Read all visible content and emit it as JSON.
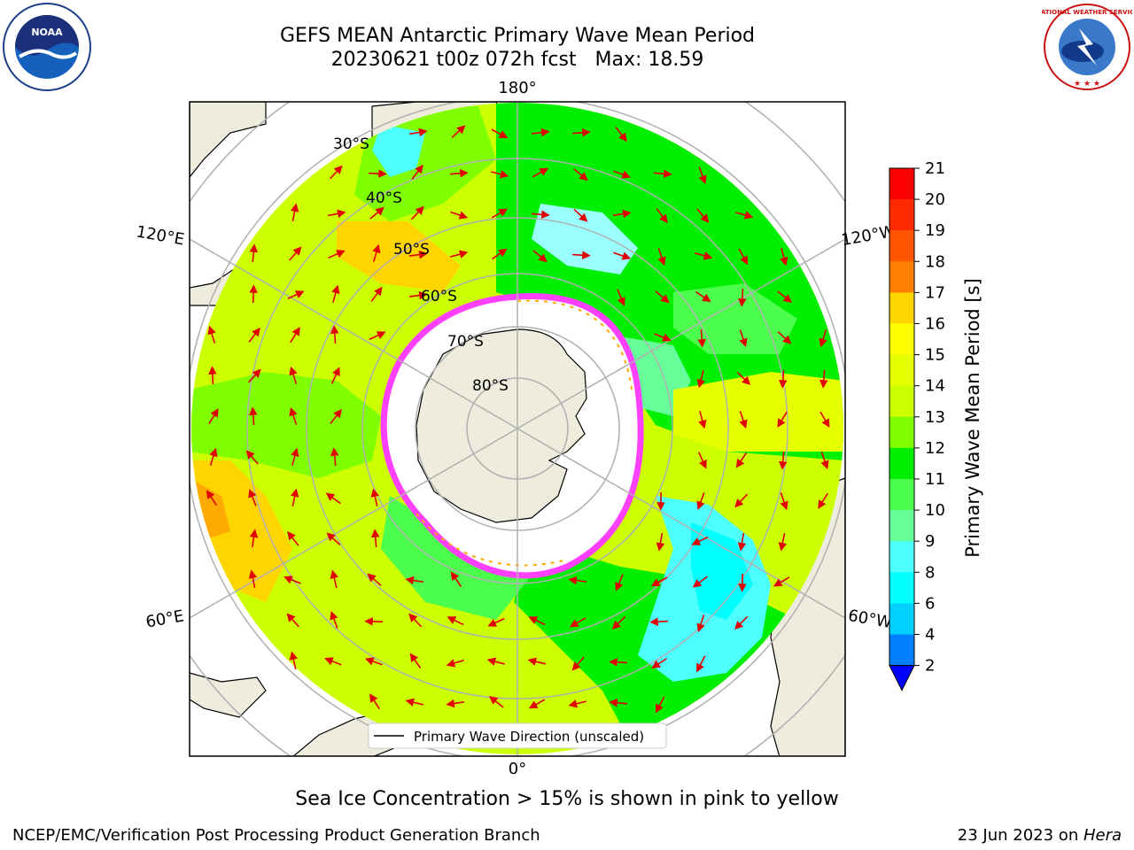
{
  "title": {
    "line1": "GEFS MEAN Antarctic Primary Wave Mean Period",
    "line2": "20230621 t00z 072h fcst   Max: 18.59"
  },
  "map": {
    "projection": "south-polar-stereographic",
    "longitude_labels": {
      "top": "180°",
      "bottom": "0°",
      "upper_left": "120°E",
      "upper_right": "120°W",
      "lower_left": "60°E",
      "lower_right": "60°W"
    },
    "latitude_labels": [
      "30°S",
      "40°S",
      "50°S",
      "60°S",
      "70°S",
      "80°S"
    ],
    "land_color": "#eeecdc",
    "ice_color": "#ffffff",
    "arrow_color": "#e00000",
    "legend_label": "Primary Wave Direction (unscaled)"
  },
  "colorbar": {
    "label": "Primary Wave Mean Period [s]",
    "ticks": [
      "21",
      "20",
      "19",
      "18",
      "17",
      "16",
      "15",
      "14",
      "13",
      "12",
      "11",
      "10",
      "9",
      "8",
      "6",
      "4",
      "2"
    ],
    "colors_top_to_bottom": [
      "#ff0000",
      "#ff2a00",
      "#ff5500",
      "#ff8000",
      "#ffaa00",
      "#ffd500",
      "#ffff00",
      "#e6ff00",
      "#ccff00",
      "#80ff00",
      "#00ee00",
      "#4dff4d",
      "#66ff99",
      "#99ffff",
      "#4dffff",
      "#00ffff",
      "#00d0ff",
      "#0080ff",
      "#0000ff"
    ]
  },
  "logos": {
    "left": "NOAA",
    "right": "NATIONAL WEATHER SERVICE"
  },
  "footer": {
    "note": "Sea Ice Concentration > 15% is shown in pink to yellow",
    "org": "NCEP/EMC/Verification Post Processing Product Generation Branch",
    "date": "23 Jun 2023 on ",
    "host": "Hera"
  }
}
